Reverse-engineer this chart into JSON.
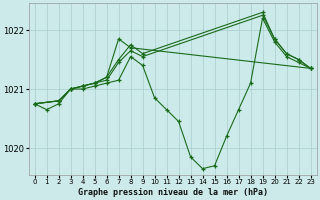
{
  "xlabel": "Graphe pression niveau de la mer (hPa)",
  "xlim": [
    -0.5,
    23.5
  ],
  "ylim": [
    1019.55,
    1022.45
  ],
  "yticks": [
    1020,
    1021,
    1022
  ],
  "xticks": [
    0,
    1,
    2,
    3,
    4,
    5,
    6,
    7,
    8,
    9,
    10,
    11,
    12,
    13,
    14,
    15,
    16,
    17,
    18,
    19,
    20,
    21,
    22,
    23
  ],
  "bg_color": "#cceaea",
  "grid_color": "#aacccc",
  "line_color": "#1a6b1a",
  "marker": "+",
  "lines": [
    {
      "x": [
        0,
        1,
        2,
        3,
        4,
        5,
        6,
        7,
        8,
        9,
        10,
        11,
        12,
        13,
        14,
        15,
        16,
        17,
        18,
        19,
        20,
        21,
        22,
        23
      ],
      "y": [
        1020.75,
        1020.65,
        1020.75,
        1021.0,
        1021.0,
        1021.05,
        1021.1,
        1021.15,
        1021.55,
        1021.4,
        1020.85,
        1020.65,
        1020.45,
        1019.85,
        1019.65,
        1019.7,
        1020.2,
        1020.65,
        1021.1,
        1022.2,
        1021.8,
        1021.55,
        1021.45,
        1021.35
      ]
    },
    {
      "x": [
        0,
        2,
        3,
        4,
        5,
        6,
        7,
        8,
        9,
        19,
        20,
        21,
        22,
        23
      ],
      "y": [
        1020.75,
        1020.8,
        1021.0,
        1021.05,
        1021.1,
        1021.15,
        1021.45,
        1021.65,
        1021.55,
        1022.25,
        1021.85,
        1021.6,
        1021.5,
        1021.35
      ]
    },
    {
      "x": [
        0,
        2,
        3,
        4,
        5,
        6,
        7,
        8,
        9,
        19,
        20,
        21,
        22,
        23
      ],
      "y": [
        1020.75,
        1020.8,
        1021.0,
        1021.05,
        1021.1,
        1021.2,
        1021.5,
        1021.75,
        1021.6,
        1022.3,
        1021.85,
        1021.6,
        1021.5,
        1021.35
      ]
    },
    {
      "x": [
        0,
        2,
        3,
        4,
        5,
        6,
        7,
        8,
        23
      ],
      "y": [
        1020.75,
        1020.8,
        1021.0,
        1021.05,
        1021.1,
        1021.2,
        1021.85,
        1021.7,
        1021.35
      ]
    }
  ]
}
